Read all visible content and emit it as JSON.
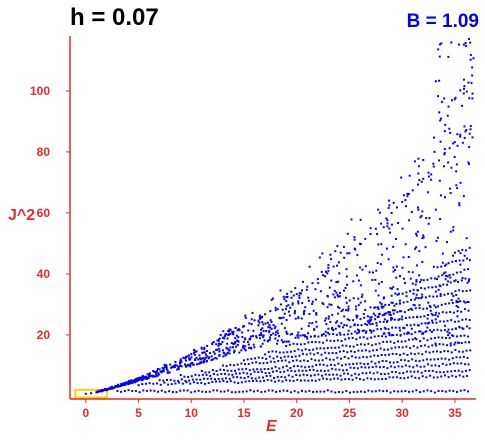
{
  "header": {
    "left_title": "h = 0.07",
    "right_title": "B = 1.09"
  },
  "chart_data": {
    "type": "scatter",
    "xlabel": "E",
    "ylabel": "J^2",
    "xlim": [
      -1.5,
      37
    ],
    "ylim": [
      -1,
      118
    ],
    "xticks": [
      0,
      5,
      10,
      15,
      20,
      25,
      30,
      35
    ],
    "yticks": [
      20,
      40,
      60,
      80,
      100
    ],
    "grid": false,
    "series": [
      {
        "marker_color": "#0000ff",
        "description_only": false,
        "points": [
          [
            0.0,
            0.7
          ],
          [
            0.5,
            0.9
          ],
          [
            1.0,
            1.2
          ],
          [
            1.5,
            1.5
          ],
          [
            2.0,
            1.9
          ],
          [
            2.5,
            2.4
          ],
          [
            3.0,
            3.0
          ],
          [
            3.5,
            3.6
          ],
          [
            4.0,
            4.2
          ],
          [
            4.5,
            4.9
          ],
          [
            5.0,
            5.6
          ],
          [
            5.5,
            6.3
          ],
          [
            6.0,
            7.1
          ],
          [
            6.5,
            7.9
          ],
          [
            7.0,
            8.7
          ],
          [
            7.5,
            9.5
          ],
          [
            8.0,
            10.3
          ],
          [
            8.5,
            11.1
          ],
          [
            9.0,
            12.0
          ],
          [
            9.5,
            12.8
          ],
          [
            10.0,
            13.7
          ],
          [
            10.5,
            14.6
          ],
          [
            11.0,
            15.5
          ],
          [
            11.5,
            16.4
          ],
          [
            12.0,
            17.3
          ],
          [
            12.5,
            18.2
          ],
          [
            13.0,
            19.1
          ],
          [
            13.5,
            20.0
          ],
          [
            14.0,
            21.0
          ],
          [
            14.5,
            21.9
          ],
          [
            15.0,
            22.9
          ],
          [
            15.5,
            23.8
          ],
          [
            16.0,
            24.8
          ],
          [
            16.5,
            25.8
          ],
          [
            17.0,
            26.8
          ],
          [
            17.5,
            27.8
          ],
          [
            18.0,
            28.9
          ],
          [
            18.5,
            30.0
          ],
          [
            19.0,
            31.1
          ],
          [
            19.5,
            32.2
          ],
          [
            20.0,
            33.4
          ],
          [
            20.5,
            34.6
          ],
          [
            21.0,
            35.8
          ],
          [
            21.5,
            37.0
          ],
          [
            22.0,
            38.3
          ],
          [
            22.5,
            39.6
          ],
          [
            23.0,
            41.0
          ],
          [
            23.5,
            42.4
          ],
          [
            24.0,
            43.8
          ],
          [
            24.5,
            45.3
          ],
          [
            25.0,
            46.8
          ],
          [
            25.5,
            48.3
          ],
          [
            26.0,
            49.9
          ],
          [
            26.5,
            51.5
          ],
          [
            27.0,
            53.1
          ],
          [
            27.5,
            54.8
          ],
          [
            28.0,
            56.5
          ],
          [
            28.5,
            58.2
          ],
          [
            29.0,
            60.0
          ],
          [
            29.5,
            61.8
          ],
          [
            30.0,
            63.6
          ],
          [
            30.5,
            65.5
          ],
          [
            31.0,
            67.4
          ],
          [
            31.5,
            69.3
          ],
          [
            32.0,
            71.2
          ],
          [
            32.5,
            73.2
          ],
          [
            33.0,
            75.2
          ],
          [
            33.5,
            77.2
          ],
          [
            34.0,
            79.2
          ],
          [
            34.5,
            81.2
          ],
          [
            35.0,
            83.2
          ],
          [
            35.5,
            85.0
          ],
          [
            36.0,
            86.7
          ],
          [
            36.5,
            88.5
          ]
        ]
      }
    ],
    "bands": [
      {
        "x_start": 3.0,
        "slope": 0.0,
        "y0": 1.5
      },
      {
        "x_start": 5.0,
        "slope": 0.16,
        "y0": 3.8
      },
      {
        "x_start": 7.0,
        "slope": 0.21,
        "y0": 5.0
      },
      {
        "x_start": 9.0,
        "slope": 0.27,
        "y0": 6.5
      },
      {
        "x_start": 11.0,
        "slope": 0.33,
        "y0": 8.0
      },
      {
        "x_start": 13.0,
        "slope": 0.39,
        "y0": 10.0
      },
      {
        "x_start": 15.0,
        "slope": 0.46,
        "y0": 12.0
      },
      {
        "x_start": 17.0,
        "slope": 0.54,
        "y0": 14.0
      },
      {
        "x_start": 19.0,
        "slope": 0.63,
        "y0": 16.5
      },
      {
        "x_start": 21.0,
        "slope": 0.74,
        "y0": 19.0
      },
      {
        "x_start": 23.0,
        "slope": 0.86,
        "y0": 22.0
      },
      {
        "x_start": 25.0,
        "slope": 1.0,
        "y0": 25.0
      },
      {
        "x_start": 27.0,
        "slope": 1.15,
        "y0": 29.0
      },
      {
        "x_start": 29.0,
        "slope": 1.32,
        "y0": 33.0
      },
      {
        "x_start": 31.0,
        "slope": 1.5,
        "y0": 37.0
      },
      {
        "x_start": 33.0,
        "slope": 1.7,
        "y0": 42.0
      },
      {
        "x_start": 35.0,
        "slope": 1.92,
        "y0": 47.0
      }
    ],
    "highlight_box": {
      "x": [
        -1.0,
        2.0
      ],
      "y": [
        -0.5,
        2.0
      ],
      "color": "#ffd400"
    },
    "axis_color": "#e52b2b",
    "marker_size": "small"
  }
}
